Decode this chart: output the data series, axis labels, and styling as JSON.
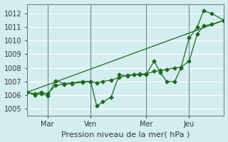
{
  "xlabel": "Pression niveau de la mer( hPa )",
  "bg_color": "#d4eef0",
  "grid_color": "#b8dce0",
  "line_color": "#1a6b1a",
  "xlim": [
    0,
    96
  ],
  "ylim": [
    1004.5,
    1012.7
  ],
  "yticks": [
    1005,
    1006,
    1007,
    1008,
    1009,
    1010,
    1011,
    1012
  ],
  "xtick_labels": [
    "Mar",
    "Ven",
    "Mer",
    "Jeu"
  ],
  "xtick_positions": [
    10,
    31,
    58,
    79
  ],
  "vline_positions": [
    10,
    31,
    58,
    79
  ],
  "series1_x": [
    0,
    4,
    7,
    10,
    14,
    18,
    22,
    27,
    31,
    34,
    37,
    41,
    45,
    49,
    52,
    55,
    58,
    62,
    65,
    68,
    72,
    75,
    79,
    83,
    86,
    90,
    96
  ],
  "series1_y": [
    1006.2,
    1006.0,
    1006.1,
    1005.95,
    1007.05,
    1006.85,
    1006.9,
    1007.0,
    1007.0,
    1005.2,
    1005.5,
    1005.85,
    1007.5,
    1007.4,
    1007.5,
    1007.5,
    1007.5,
    1008.5,
    1007.65,
    1007.0,
    1007.0,
    1008.0,
    1010.2,
    1011.0,
    1012.2,
    1012.0,
    1011.5
  ],
  "series2_x": [
    0,
    4,
    7,
    10,
    14,
    18,
    22,
    27,
    31,
    34,
    37,
    41,
    45,
    49,
    52,
    55,
    58,
    62,
    65,
    68,
    72,
    75,
    79,
    83,
    86,
    90,
    96
  ],
  "series2_y": [
    1006.2,
    1006.1,
    1006.2,
    1006.1,
    1006.7,
    1006.8,
    1006.85,
    1006.95,
    1007.0,
    1006.9,
    1007.0,
    1007.1,
    1007.3,
    1007.45,
    1007.5,
    1007.55,
    1007.55,
    1007.75,
    1007.8,
    1007.9,
    1008.0,
    1008.05,
    1008.5,
    1010.5,
    1011.1,
    1011.2,
    1011.5
  ],
  "trend_x": [
    0,
    96
  ],
  "trend_y": [
    1006.2,
    1011.5
  ]
}
